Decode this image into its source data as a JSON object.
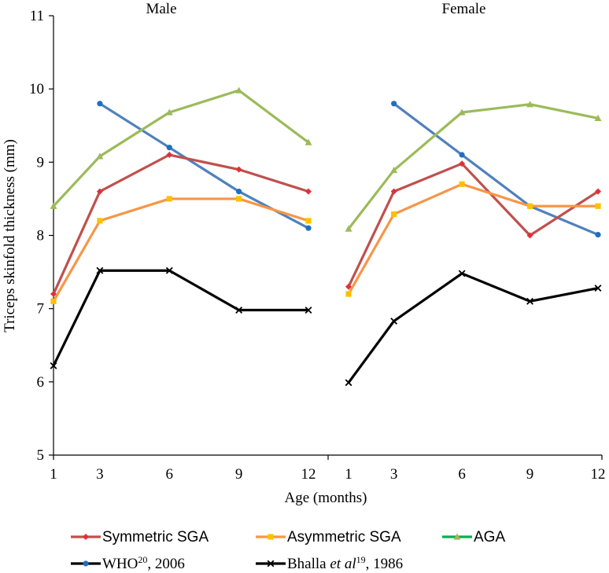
{
  "chart_data": {
    "type": "line",
    "ylabel": "Triceps skinfold thickness (mm)",
    "xlabel": "Age (months)",
    "ylim": [
      5,
      11
    ],
    "yticks": [
      "5",
      "6",
      "7",
      "8",
      "9",
      "10",
      "11"
    ],
    "x": [
      1,
      3,
      6,
      9,
      12
    ],
    "xtick_labels": [
      "1",
      "3",
      "6",
      "9",
      "12"
    ],
    "grid": false,
    "legend_position": "bottom",
    "panels": [
      {
        "title": "Male",
        "series": [
          {
            "key": "sym",
            "values": [
              7.2,
              8.6,
              9.1,
              8.9,
              8.6
            ]
          },
          {
            "key": "asym",
            "values": [
              7.1,
              8.2,
              8.5,
              8.5,
              8.2
            ]
          },
          {
            "key": "aga",
            "values": [
              8.4,
              9.08,
              9.68,
              9.98,
              9.27
            ]
          },
          {
            "key": "who",
            "values": [
              null,
              9.8,
              9.2,
              8.6,
              8.1
            ]
          },
          {
            "key": "bhalla",
            "values": [
              6.22,
              7.52,
              7.52,
              6.98,
              6.98
            ]
          }
        ]
      },
      {
        "title": "Female",
        "series": [
          {
            "key": "sym",
            "values": [
              7.3,
              8.6,
              8.98,
              8.0,
              8.6
            ]
          },
          {
            "key": "asym",
            "values": [
              7.2,
              8.29,
              8.7,
              8.4,
              8.4
            ]
          },
          {
            "key": "aga",
            "values": [
              8.09,
              8.89,
              9.68,
              9.79,
              9.6
            ]
          },
          {
            "key": "who",
            "values": [
              null,
              9.8,
              9.1,
              8.4,
              8.01
            ]
          },
          {
            "key": "bhalla",
            "values": [
              5.99,
              6.83,
              7.48,
              7.1,
              7.28
            ]
          }
        ]
      }
    ],
    "legend": [
      {
        "key": "sym",
        "name": "Symmetric SGA",
        "color": "#c0504d",
        "marker_color": "#e0303a",
        "marker": "diamond"
      },
      {
        "key": "asym",
        "name": "Asymmetric SGA",
        "color": "#f79646",
        "marker_color": "#ffc000",
        "marker": "square"
      },
      {
        "key": "aga",
        "name": "AGA",
        "color": "#9bbb59",
        "marker_color": "#9bbb59",
        "marker": "triangle",
        "legend_color": "#00b050"
      },
      {
        "key": "who",
        "name": "WHO",
        "sup": "20",
        "name_suffix": ", 2006",
        "color": "#4f81bd",
        "marker_color": "#1f6fbf",
        "marker": "circle",
        "legend_color": "#000000"
      },
      {
        "key": "bhalla",
        "name": "Bhalla ",
        "name_italic": "et al",
        "sup": "19",
        "name_suffix": ", 1986",
        "color": "#000000",
        "marker_color": "#000000",
        "marker": "x"
      }
    ]
  }
}
